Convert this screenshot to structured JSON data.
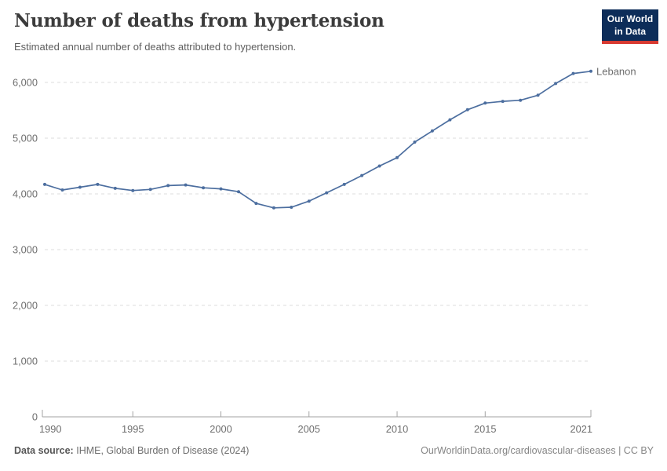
{
  "header": {
    "title": "Number of deaths from hypertension",
    "subtitle": "Estimated annual number of deaths attributed to hypertension.",
    "logo": {
      "line1": "Our World",
      "line2": "in Data",
      "bg_color": "#0d2d59",
      "bar_color": "#d73a31"
    }
  },
  "footer": {
    "source_label": "Data source:",
    "source_text": "IHME, Global Burden of Disease (2024)",
    "right_text": "OurWorldinData.org/cardiovascular-diseases | CC BY"
  },
  "chart_data": {
    "type": "line",
    "title": "Number of deaths from hypertension",
    "subtitle": "Estimated annual number of deaths attributed to hypertension.",
    "xlabel": "",
    "ylabel": "",
    "xlim": [
      1990,
      2021
    ],
    "ylim": [
      0,
      6000
    ],
    "xticks": [
      1990,
      1995,
      2000,
      2005,
      2010,
      2015,
      2021
    ],
    "yticks": [
      0,
      1000,
      2000,
      3000,
      4000,
      5000,
      6000
    ],
    "grid": "horizontal-dashed",
    "legend_position": "end-of-line",
    "end_label": "Lebanon",
    "series": [
      {
        "name": "Lebanon",
        "color": "#4c6e9f",
        "x": [
          1990,
          1991,
          1992,
          1993,
          1994,
          1995,
          1996,
          1997,
          1998,
          1999,
          2000,
          2001,
          2002,
          2003,
          2004,
          2005,
          2006,
          2007,
          2008,
          2009,
          2010,
          2011,
          2012,
          2013,
          2014,
          2015,
          2016,
          2017,
          2018,
          2019,
          2020,
          2021
        ],
        "values": [
          4170,
          4070,
          4120,
          4170,
          4100,
          4060,
          4080,
          4150,
          4160,
          4110,
          4090,
          4040,
          3830,
          3750,
          3760,
          3870,
          4020,
          4170,
          4330,
          4500,
          4650,
          4930,
          5130,
          5330,
          5510,
          5630,
          5660,
          5680,
          5770,
          5980,
          6160,
          6200
        ]
      }
    ]
  }
}
